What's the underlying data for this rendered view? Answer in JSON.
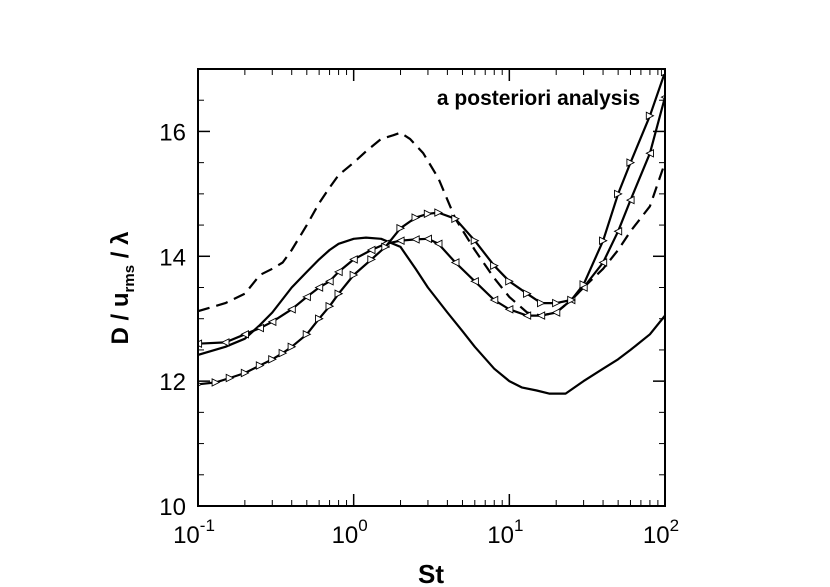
{
  "chart_data": {
    "type": "line",
    "annotation": "a posteriori analysis",
    "xlabel": "St",
    "ylabel": {
      "main": "D / u",
      "sub": "rms",
      "tail": " / λ"
    },
    "xscale": "log",
    "xlim": [
      0.1,
      100
    ],
    "ylim": [
      10,
      17
    ],
    "yticks": [
      10,
      12,
      14,
      16
    ],
    "xticks": [
      {
        "value": 0.1,
        "base": "10",
        "exp": "-1"
      },
      {
        "value": 1,
        "base": "10",
        "exp": "0"
      },
      {
        "value": 10,
        "base": "10",
        "exp": "1"
      },
      {
        "value": 100,
        "base": "10",
        "exp": "2"
      }
    ],
    "grid": false,
    "series": [
      {
        "style": "dashed",
        "marker": "none",
        "x": [
          0.1,
          0.15,
          0.2,
          0.25,
          0.3,
          0.35,
          0.4,
          0.5,
          0.6,
          0.7,
          0.8,
          1.0,
          1.2,
          1.5,
          1.8,
          2.0,
          2.3,
          2.8,
          3.5,
          4.5,
          6,
          8,
          10,
          13,
          16,
          20,
          25,
          30,
          40,
          50,
          60,
          80,
          100
        ],
        "y": [
          13.12,
          13.25,
          13.4,
          13.7,
          13.8,
          13.9,
          14.1,
          14.5,
          14.85,
          15.1,
          15.3,
          15.5,
          15.68,
          15.88,
          15.94,
          15.98,
          15.88,
          15.65,
          15.25,
          14.6,
          14.1,
          13.65,
          13.35,
          13.1,
          13.05,
          13.1,
          13.3,
          13.5,
          13.8,
          14.1,
          14.4,
          14.8,
          15.5
        ]
      },
      {
        "style": "solid",
        "marker": "none",
        "x": [
          0.1,
          0.15,
          0.2,
          0.25,
          0.3,
          0.4,
          0.5,
          0.6,
          0.7,
          0.8,
          1.0,
          1.2,
          1.5,
          2.0,
          2.5,
          3.0,
          4.0,
          5.0,
          6.0,
          8.0,
          10,
          12,
          15,
          18,
          20,
          23,
          30,
          40,
          50,
          60,
          80,
          100
        ],
        "y": [
          12.42,
          12.55,
          12.68,
          12.9,
          13.1,
          13.5,
          13.75,
          13.95,
          14.1,
          14.2,
          14.28,
          14.3,
          14.28,
          14.15,
          13.8,
          13.5,
          13.1,
          12.8,
          12.55,
          12.2,
          12.0,
          11.9,
          11.85,
          11.8,
          11.8,
          11.8,
          12.0,
          12.2,
          12.35,
          12.5,
          12.75,
          13.05
        ]
      },
      {
        "style": "solid",
        "marker": "triangle-left",
        "x": [
          0.1,
          0.15,
          0.2,
          0.25,
          0.3,
          0.4,
          0.5,
          0.6,
          0.7,
          0.8,
          1.0,
          1.3,
          1.6,
          2.0,
          2.5,
          3.0,
          3.5,
          4.5,
          6,
          8,
          10,
          13,
          16,
          20,
          25,
          30,
          40,
          50,
          60,
          80,
          100
        ],
        "y": [
          12.6,
          12.62,
          12.75,
          12.85,
          12.95,
          13.15,
          13.35,
          13.5,
          13.6,
          13.75,
          13.95,
          14.1,
          14.2,
          14.25,
          14.27,
          14.28,
          14.2,
          13.9,
          13.6,
          13.3,
          13.15,
          13.05,
          13.05,
          13.1,
          13.3,
          13.5,
          13.9,
          14.4,
          14.9,
          15.65,
          16.55
        ]
      },
      {
        "style": "solid",
        "marker": "triangle-right",
        "x": [
          0.1,
          0.13,
          0.16,
          0.2,
          0.25,
          0.3,
          0.35,
          0.4,
          0.5,
          0.6,
          0.7,
          0.8,
          1.0,
          1.3,
          1.6,
          2.0,
          2.5,
          3.0,
          3.5,
          4.5,
          6,
          8,
          10,
          13,
          16,
          20,
          25,
          30,
          40,
          50,
          60,
          80,
          100
        ],
        "y": [
          11.95,
          11.98,
          12.05,
          12.13,
          12.25,
          12.35,
          12.45,
          12.55,
          12.75,
          13.0,
          13.2,
          13.4,
          13.7,
          13.95,
          14.15,
          14.45,
          14.62,
          14.68,
          14.7,
          14.6,
          14.25,
          13.85,
          13.6,
          13.4,
          13.25,
          13.25,
          13.3,
          13.55,
          14.25,
          15.0,
          15.5,
          16.25,
          16.95
        ]
      }
    ]
  }
}
